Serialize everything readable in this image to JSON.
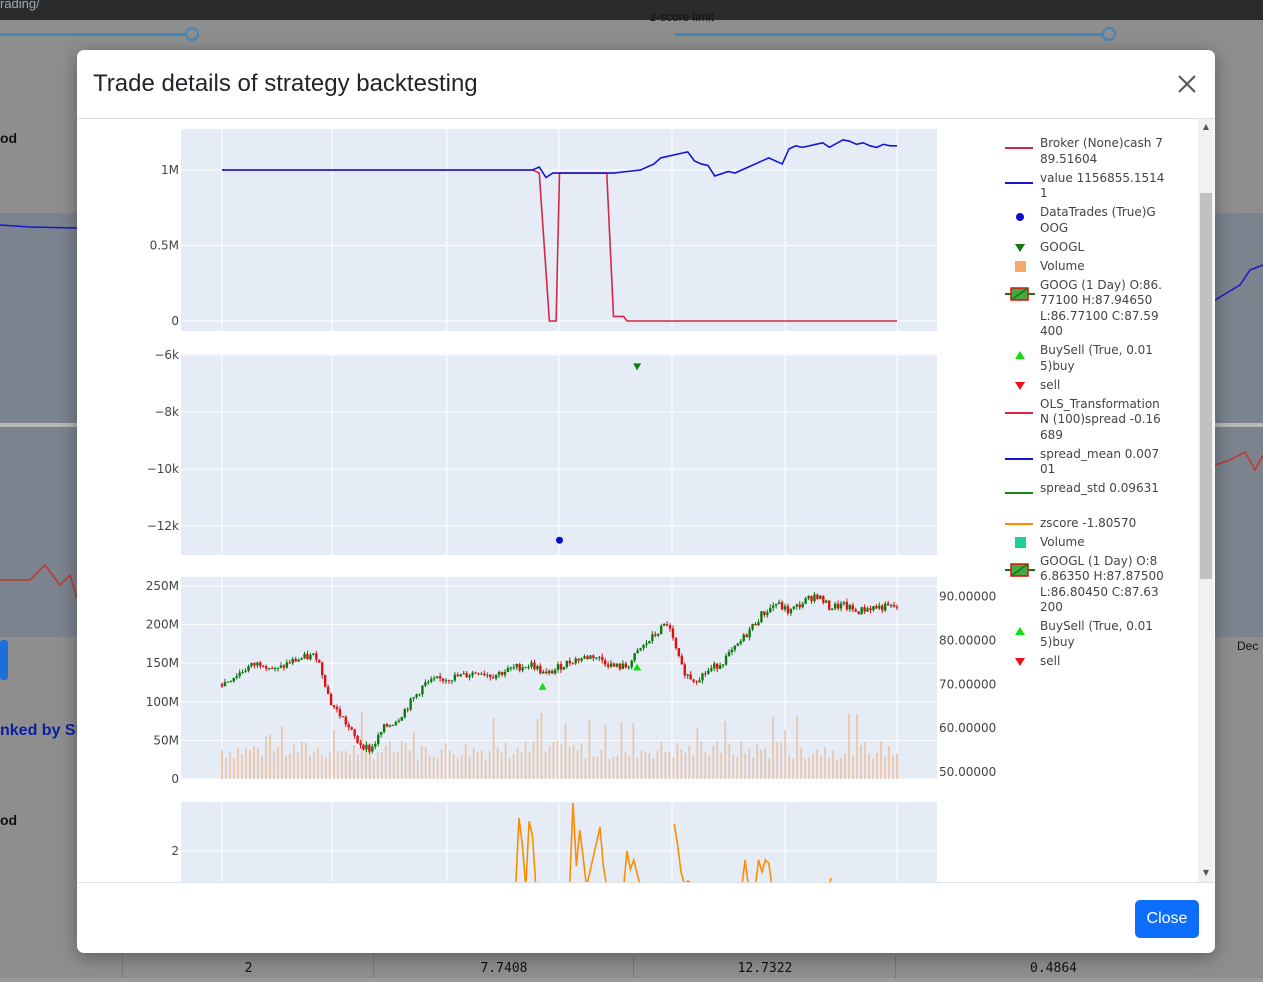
{
  "background": {
    "url_fragment": "rading/",
    "top_label": "z-score limit",
    "header_left_1": "od",
    "header_left_2": "od",
    "ranked_text": "nked by Sh",
    "dec_label": "Dec",
    "table_row": [
      "2",
      "7.7408",
      "12.7322",
      "0.4864"
    ]
  },
  "modal": {
    "title": "Trade details of strategy backtesting",
    "close_button": "Close"
  },
  "legend": [
    {
      "label": "Broker (None)cash 789.51604",
      "symbol": "line",
      "color": "#d62746"
    },
    {
      "label": "value 1156855.15141",
      "symbol": "line",
      "color": "#1515d6"
    },
    {
      "label": "DataTrades (True)GOOG",
      "symbol": "circle",
      "color": "#0a0ad0"
    },
    {
      "label": "GOOGL",
      "symbol": "triangle-down",
      "color": "#0f7a0f"
    },
    {
      "label": "Volume",
      "symbol": "square",
      "color": "#f4a86c"
    },
    {
      "label": "GOOG (1 Day) O:86.77100 H:87.94650 L:86.77100 C:87.59400",
      "symbol": "candle",
      "color": "#44aa44"
    },
    {
      "label": "BuySell (True, 0.015)buy",
      "symbol": "triangle-up",
      "color": "#11dd11"
    },
    {
      "label": "sell",
      "symbol": "triangle-down",
      "color": "#ee1111"
    },
    {
      "label": "OLS_TransformationN (100)spread -0.16689",
      "symbol": "line",
      "color": "#d62746"
    },
    {
      "label": "spread_mean 0.00701",
      "symbol": "line",
      "color": "#1515d6"
    },
    {
      "label": "spread_std 0.09631",
      "symbol": "line",
      "color": "#158a15"
    },
    {
      "label": "zscore -1.80570",
      "symbol": "line",
      "color": "#ff8c00"
    },
    {
      "label": "Volume",
      "symbol": "square",
      "color": "#1ecf9a"
    },
    {
      "label": "GOOGL (1 Day) O:86.86350 H:87.87500 L:86.80450 C:87.63200",
      "symbol": "candle",
      "color": "#44aa44"
    },
    {
      "label": "BuySell (True, 0.015)buy",
      "symbol": "triangle-up",
      "color": "#11dd11"
    },
    {
      "label": "sell",
      "symbol": "triangle-down",
      "color": "#ee1111"
    }
  ],
  "chart_data": [
    {
      "type": "line",
      "title": "",
      "yticks": [
        "1M",
        "0.5M",
        "0"
      ],
      "ylim": [
        -50000,
        1250000
      ],
      "series": [
        {
          "name": "Broker (None)cash",
          "color": "#d62746",
          "x": [
            0,
            46,
            47,
            48.5,
            49.5,
            50,
            51,
            57,
            58,
            59.5,
            60,
            61.5,
            100
          ],
          "y": [
            1000000,
            1000000,
            980000,
            0,
            0,
            980000,
            980000,
            980000,
            30000,
            30000,
            0,
            0,
            0
          ]
        },
        {
          "name": "value",
          "color": "#1515d6",
          "x": [
            0,
            46,
            47,
            48,
            49,
            50,
            53,
            56,
            58,
            60,
            62,
            64,
            65,
            67,
            69,
            70,
            71,
            72,
            73,
            75,
            76,
            77,
            78,
            80,
            81,
            83,
            84,
            85,
            86,
            88,
            89,
            90,
            92,
            93,
            94,
            95,
            96,
            97,
            98,
            99,
            100
          ],
          "y": [
            1000000,
            1000000,
            1020000,
            950000,
            980000,
            980000,
            980000,
            980000,
            980000,
            990000,
            1000000,
            1040000,
            1080000,
            1100000,
            1120000,
            1060000,
            1040000,
            1030000,
            960000,
            990000,
            980000,
            1000000,
            1020000,
            1060000,
            1080000,
            1040000,
            1140000,
            1160000,
            1150000,
            1170000,
            1180000,
            1150000,
            1200000,
            1190000,
            1170000,
            1180000,
            1160000,
            1150000,
            1170000,
            1160000,
            1160000
          ]
        }
      ]
    },
    {
      "type": "scatter",
      "yticks": [
        "-6k",
        "-8k",
        "-10k",
        "-12k"
      ],
      "ylim": [
        -12950,
        -5950
      ],
      "series": [
        {
          "name": "DataTrades GOOG",
          "color": "#0a0ad0",
          "x": [
            50
          ],
          "y": [
            -12500
          ],
          "marker": "circle"
        },
        {
          "name": "GOOGL",
          "color": "#0f7a0f",
          "x": [
            61.5
          ],
          "y": [
            -6400
          ],
          "marker": "triangle-down"
        }
      ]
    },
    {
      "type": "candlestick",
      "left_yticks": [
        "250M",
        "200M",
        "150M",
        "100M",
        "50M",
        "0"
      ],
      "right_yticks": [
        "90.00000",
        "80.00000",
        "70.00000",
        "60.00000",
        "50.00000"
      ],
      "price_ylim": [
        50,
        90
      ],
      "volume_ylim": [
        0,
        250000000
      ],
      "close_keypoints": {
        "x": [
          0,
          4,
          6,
          8,
          10,
          12,
          14,
          15,
          16,
          18,
          20,
          21,
          22,
          24,
          26,
          28,
          30,
          32,
          34,
          36,
          38,
          40,
          42,
          44,
          46,
          48,
          50,
          52,
          55,
          57,
          58,
          60,
          62,
          64,
          66,
          67,
          68,
          69,
          70,
          72,
          74,
          76,
          78,
          80,
          81,
          82,
          84,
          86,
          88,
          90,
          92,
          94,
          96,
          100
        ],
        "y": [
          70,
          74,
          75,
          73,
          75,
          76,
          76.5,
          72,
          66,
          62,
          57,
          56,
          55,
          60,
          62,
          66,
          70,
          71,
          71.5,
          72,
          73,
          72,
          73,
          74,
          74.5,
          72,
          74,
          75.5,
          76.5,
          75,
          74,
          74,
          78,
          81,
          84,
          79,
          74,
          72,
          71,
          73,
          75,
          78,
          82,
          86,
          87,
          88.5,
          86.5,
          88.5,
          90.5,
          87.5,
          88,
          86.5,
          87.5,
          87.6
        ]
      },
      "volume_profile": "bars mostly 30M-60M with spikes up to ~90M",
      "buy_markers_x": [
        47.5,
        61.5
      ]
    },
    {
      "type": "line",
      "yticks": [
        "2"
      ],
      "series": [
        {
          "name": "zscore",
          "color": "#ff8c00",
          "x": [
            43.5,
            44,
            44.5,
            45,
            45.5,
            46,
            46.5,
            47,
            51.5,
            52,
            52.5,
            53,
            53.5,
            54,
            56,
            56.5,
            57,
            59.5,
            60,
            60.5,
            61,
            62,
            67,
            67.5,
            68,
            68.5,
            69,
            70.5,
            77,
            77.5,
            78,
            79,
            79.5,
            80,
            80.5,
            81,
            81.5,
            90,
            90.2
          ],
          "y": [
            0.8,
            3.1,
            2.2,
            0.8,
            3.0,
            2.5,
            0.8,
            0.8,
            0.8,
            3.6,
            1.5,
            2.7,
            1.8,
            0.8,
            2.8,
            1.5,
            0.8,
            0.8,
            2.0,
            1.4,
            1.7,
            0.8,
            2.9,
            2.2,
            1.3,
            0.9,
            1.0,
            0.8,
            0.8,
            1.7,
            0.8,
            0.8,
            1.7,
            1.3,
            1.7,
            1.6,
            0.8,
            0.8,
            1.1
          ]
        }
      ]
    }
  ]
}
